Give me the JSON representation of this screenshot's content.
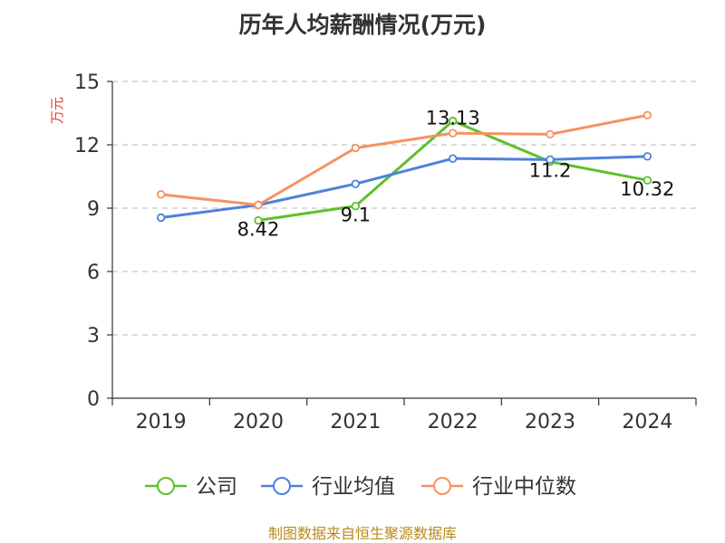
{
  "chart_data": {
    "type": "line",
    "title": "历年人均薪酬情况(万元)",
    "ylabel": "万元",
    "xlabel": "",
    "categories": [
      "2019",
      "2020",
      "2021",
      "2022",
      "2023",
      "2024"
    ],
    "ylim": [
      0,
      15
    ],
    "yticks": [
      0,
      3,
      6,
      9,
      12,
      15
    ],
    "grid": true,
    "legend_position": "bottom",
    "series": [
      {
        "name": "公司",
        "color": "#5cc12a",
        "values": [
          null,
          8.42,
          9.1,
          13.13,
          11.2,
          10.32
        ],
        "labels": [
          null,
          "8.42",
          "9.1",
          "13.13",
          "11.2",
          "10.32"
        ]
      },
      {
        "name": "行业均值",
        "color": "#4f81db",
        "values": [
          8.55,
          9.15,
          10.15,
          11.35,
          11.3,
          11.45
        ],
        "labels": [
          null,
          null,
          null,
          null,
          null,
          null
        ]
      },
      {
        "name": "行业中位数",
        "color": "#f59260",
        "values": [
          9.65,
          9.15,
          11.85,
          12.55,
          12.5,
          13.4
        ],
        "labels": [
          null,
          null,
          null,
          null,
          null,
          null
        ]
      }
    ]
  },
  "footer": {
    "source": "制图数据来自恒生聚源数据库"
  }
}
